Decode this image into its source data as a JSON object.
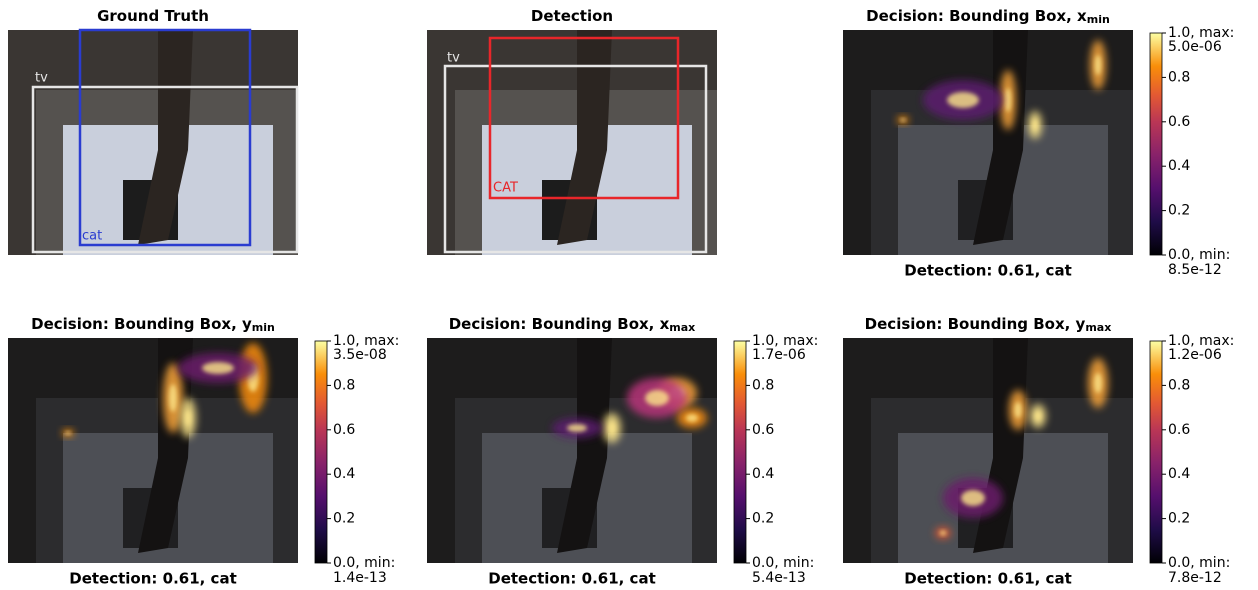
{
  "panels": [
    {
      "title": "Ground Truth",
      "boxes": [
        {
          "label": "tv",
          "color": "#e6e6e6"
        },
        {
          "label": "cat",
          "color": "#2a3cd0"
        }
      ]
    },
    {
      "title": "Detection",
      "boxes": [
        {
          "label": "tv",
          "color": "#e6e6e6"
        },
        {
          "label": "CAT",
          "color": "#e8262a"
        }
      ]
    },
    {
      "title": "Decision: Bounding Box, x",
      "title_sub": "min",
      "caption": "Detection: 0.61, cat",
      "colorbar": {
        "ticks": [
          {
            "value": 0,
            "label": "0.0, min:"
          },
          0.2,
          0.4,
          0.6,
          0.8,
          {
            "value": 1,
            "label": "1.0, max:"
          }
        ],
        "min": "8.5e-12",
        "max": "5.0e-06"
      }
    },
    {
      "title": "Decision: Bounding Box, y",
      "title_sub": "min",
      "caption": "Detection: 0.61, cat",
      "colorbar": {
        "ticks": [
          {
            "value": 0,
            "label": "0.0, min:"
          },
          0.2,
          0.4,
          0.6,
          0.8,
          {
            "value": 1,
            "label": "1.0, max:"
          }
        ],
        "min": "1.4e-13",
        "max": "3.5e-08"
      }
    },
    {
      "title": "Decision: Bounding Box, x",
      "title_sub": "max",
      "caption": "Detection: 0.61, cat",
      "colorbar": {
        "ticks": [
          {
            "value": 0,
            "label": "0.0, min:"
          },
          0.2,
          0.4,
          0.6,
          0.8,
          {
            "value": 1,
            "label": "1.0, max:"
          }
        ],
        "min": "5.4e-13",
        "max": "1.7e-06"
      }
    },
    {
      "title": "Decision: Bounding Box, y",
      "title_sub": "max",
      "caption": "Detection: 0.61, cat",
      "colorbar": {
        "ticks": [
          {
            "value": 0,
            "label": "0.0, min:"
          },
          0.2,
          0.4,
          0.6,
          0.8,
          {
            "value": 1,
            "label": "1.0, max:"
          }
        ],
        "min": "7.8e-12",
        "max": "1.2e-06"
      }
    }
  ]
}
